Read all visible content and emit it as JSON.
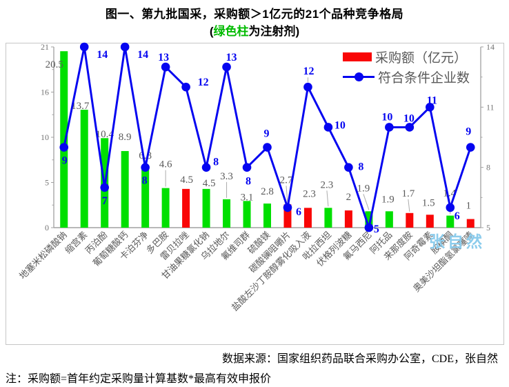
{
  "header": {
    "title": "图一、第九批国采，采购额＞1亿元的21个品种竞争格局",
    "subtitle_prefix": "(",
    "subtitle_highlight": "绿色柱",
    "subtitle_suffix": "为注射剂)"
  },
  "legend": {
    "bar_label": "采购额（亿元）",
    "line_label": "符合条件企业数"
  },
  "chart_data": {
    "type": "bar",
    "combo": "bar + line, dual axis",
    "title": "图一、第九批国采，采购额＞1亿元的21个品种竞争格局",
    "subtitle": "(绿色柱为注射剂)",
    "categories": [
      "地塞米松磷酸钠",
      "缩宫素",
      "丙泊酚",
      "葡萄糖酸钙",
      "卡泊芬净",
      "多巴胺",
      "雷贝拉唑",
      "甘油果糖氯化钠",
      "乌拉地尔",
      "氟维司群",
      "硫酸镁",
      "碳酸镧咀嚼片",
      "盐酸左沙丁胺醇雾化吸入液",
      "吡拉西坦",
      "伏格列波糖",
      "氟马西尼",
      "阿托品",
      "来那度胺",
      "阿奇霉素",
      "胺碘酮",
      "奥美沙坦酯氢氯噻嗪"
    ],
    "series": [
      {
        "name": "采购额（亿元）",
        "type": "bar",
        "axis": "left",
        "values": [
          20.5,
          13.7,
          10.4,
          8.9,
          6.8,
          4.6,
          4.5,
          4.5,
          3.3,
          3.1,
          2.8,
          2.7,
          2.3,
          2.3,
          2,
          1.9,
          1.9,
          1.7,
          1.5,
          1.4,
          1
        ],
        "injection_flags": [
          true,
          true,
          true,
          true,
          true,
          true,
          false,
          true,
          true,
          true,
          true,
          false,
          false,
          true,
          false,
          true,
          true,
          false,
          false,
          true,
          false
        ],
        "color_rule": "绿色柱为注射剂 (green = injection), red = non-injection"
      },
      {
        "name": "符合条件企业数",
        "type": "line",
        "axis": "right",
        "values": [
          9,
          14,
          7,
          14,
          8,
          13,
          12,
          8,
          13,
          8,
          9,
          6,
          12,
          10,
          8,
          5,
          10,
          10,
          11,
          6,
          9
        ]
      }
    ],
    "left_axis": {
      "min": 0,
      "max": 21,
      "tick_labels": [
        "21",
        "16",
        "10",
        "5",
        "0"
      ]
    },
    "right_axis": {
      "min": 5,
      "max": 14,
      "tick_labels": [
        "14",
        "11",
        "8",
        "5"
      ]
    },
    "grid": false,
    "legend_position": "top-right inside plot",
    "colors": {
      "injection_bar": "#00df00",
      "non_injection_bar": "#f90606",
      "line": "#0505f0",
      "line_label": "#0505f0",
      "bar_label": "#595959",
      "axis_label": "#737373",
      "category_label": "#595959",
      "subtitle_highlight": "#00bb00",
      "watermark": "#8cccec"
    }
  },
  "watermark": "张自然",
  "footer": {
    "source": "数据来源：国家组织药品联合采购办公室，CDE，张自然",
    "note": "注：采购额=首年约定采购量计算基数*最高有效申报价"
  }
}
